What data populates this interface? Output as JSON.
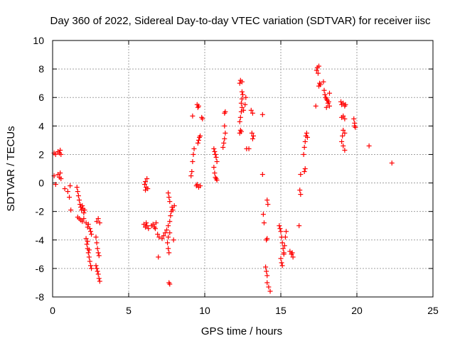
{
  "chart_data": {
    "type": "scatter",
    "title": "Day 360 of 2022, Sidereal Day-to-day VTEC variation (SDTVAR) for receiver iisc",
    "xlabel": "GPS time / hours",
    "ylabel": "SDTVAR / TECUs",
    "xlim": [
      0,
      25
    ],
    "ylim": [
      -8,
      10
    ],
    "xticks": [
      "0",
      "5",
      "10",
      "15",
      "20",
      "25"
    ],
    "yticks": [
      "-8",
      "-6",
      "-4",
      "-2",
      "0",
      "2",
      "4",
      "6",
      "8",
      "10"
    ],
    "grid": true,
    "marker": "+",
    "color": "#ff0000",
    "series": [
      {
        "name": "SDTVAR",
        "points": [
          [
            0.1,
            2.1
          ],
          [
            0.2,
            2.0
          ],
          [
            0.35,
            2.2
          ],
          [
            0.45,
            2.1
          ],
          [
            0.5,
            2.3
          ],
          [
            0.55,
            2.0
          ],
          [
            0.1,
            0.5
          ],
          [
            0.2,
            -0.1
          ],
          [
            0.35,
            0.6
          ],
          [
            0.45,
            0.4
          ],
          [
            0.5,
            0.7
          ],
          [
            0.55,
            0.3
          ],
          [
            0.8,
            -0.4
          ],
          [
            1.0,
            -0.6
          ],
          [
            1.1,
            -1.0
          ],
          [
            1.2,
            -1.9
          ],
          [
            1.15,
            -0.2
          ],
          [
            1.6,
            -0.3
          ],
          [
            1.65,
            -0.6
          ],
          [
            1.7,
            -0.9
          ],
          [
            1.75,
            -1.2
          ],
          [
            1.8,
            -1.5
          ],
          [
            1.85,
            -1.7
          ],
          [
            1.9,
            -1.9
          ],
          [
            1.95,
            -1.6
          ],
          [
            2.0,
            -1.8
          ],
          [
            2.05,
            -2.1
          ],
          [
            2.1,
            -1.9
          ],
          [
            1.65,
            -2.4
          ],
          [
            1.75,
            -2.5
          ],
          [
            1.85,
            -2.6
          ],
          [
            1.95,
            -2.7
          ],
          [
            2.05,
            -2.5
          ],
          [
            2.2,
            -2.8
          ],
          [
            2.3,
            -3.1
          ],
          [
            2.35,
            -2.9
          ],
          [
            2.45,
            -3.2
          ],
          [
            2.5,
            -3.4
          ],
          [
            2.55,
            -3.6
          ],
          [
            2.2,
            -3.9
          ],
          [
            2.25,
            -4.3
          ],
          [
            2.3,
            -4.6
          ],
          [
            2.35,
            -4.9
          ],
          [
            2.4,
            -5.2
          ],
          [
            2.45,
            -5.5
          ],
          [
            2.5,
            -5.8
          ],
          [
            2.55,
            -6.0
          ],
          [
            2.3,
            -4.1
          ],
          [
            2.4,
            -4.7
          ],
          [
            2.85,
            -3.8
          ],
          [
            2.9,
            -4.2
          ],
          [
            2.95,
            -4.6
          ],
          [
            3.0,
            -4.9
          ],
          [
            3.05,
            -5.1
          ],
          [
            2.85,
            -5.8
          ],
          [
            2.9,
            -6.0
          ],
          [
            2.95,
            -6.2
          ],
          [
            3.0,
            -6.4
          ],
          [
            3.05,
            -6.7
          ],
          [
            3.1,
            -6.9
          ],
          [
            2.9,
            -2.7
          ],
          [
            3.0,
            -2.5
          ],
          [
            3.1,
            -2.8
          ],
          [
            6.05,
            -0.1
          ],
          [
            6.1,
            0.1
          ],
          [
            6.15,
            -0.3
          ],
          [
            6.2,
            0.3
          ],
          [
            6.25,
            -0.4
          ],
          [
            6.1,
            -0.5
          ],
          [
            6.0,
            -2.9
          ],
          [
            6.1,
            -3.1
          ],
          [
            6.2,
            -3.0
          ],
          [
            6.3,
            -3.2
          ],
          [
            6.15,
            -2.8
          ],
          [
            6.5,
            -3.0
          ],
          [
            6.6,
            -2.9
          ],
          [
            6.7,
            -3.1
          ],
          [
            6.8,
            -2.8
          ],
          [
            6.75,
            -3.2
          ],
          [
            6.9,
            -3.6
          ],
          [
            7.0,
            -3.8
          ],
          [
            6.95,
            -5.2
          ],
          [
            7.2,
            -3.9
          ],
          [
            7.3,
            -3.7
          ],
          [
            7.4,
            -3.5
          ],
          [
            7.5,
            -3.3
          ],
          [
            7.6,
            -3.0
          ],
          [
            7.7,
            -2.7
          ],
          [
            7.55,
            -4.2
          ],
          [
            7.6,
            -4.6
          ],
          [
            7.65,
            -4.9
          ],
          [
            7.6,
            -3.8
          ],
          [
            7.7,
            -3.5
          ],
          [
            7.75,
            -2.3
          ],
          [
            7.8,
            -2.0
          ],
          [
            7.85,
            -1.7
          ],
          [
            7.9,
            -1.9
          ],
          [
            8.0,
            -1.6
          ],
          [
            7.95,
            -4.0
          ],
          [
            7.6,
            -0.7
          ],
          [
            7.65,
            -1.0
          ],
          [
            7.7,
            -1.3
          ],
          [
            7.65,
            -7.0
          ],
          [
            7.7,
            -7.1
          ],
          [
            9.1,
            0.5
          ],
          [
            9.15,
            0.8
          ],
          [
            9.2,
            1.5
          ],
          [
            9.25,
            2.0
          ],
          [
            9.3,
            2.4
          ],
          [
            9.2,
            4.7
          ],
          [
            9.5,
            5.5
          ],
          [
            9.55,
            5.3
          ],
          [
            9.6,
            5.4
          ],
          [
            9.55,
            2.8
          ],
          [
            9.6,
            3.0
          ],
          [
            9.65,
            3.2
          ],
          [
            9.7,
            3.3
          ],
          [
            9.8,
            4.6
          ],
          [
            9.85,
            4.5
          ],
          [
            9.45,
            -0.2
          ],
          [
            9.5,
            -0.1
          ],
          [
            9.6,
            -0.3
          ],
          [
            9.7,
            -0.2
          ],
          [
            10.6,
            2.4
          ],
          [
            10.65,
            2.2
          ],
          [
            10.7,
            2.0
          ],
          [
            10.75,
            1.8
          ],
          [
            10.8,
            1.5
          ],
          [
            10.6,
            1.1
          ],
          [
            10.65,
            0.7
          ],
          [
            10.7,
            0.4
          ],
          [
            10.75,
            0.3
          ],
          [
            10.8,
            0.2
          ],
          [
            11.2,
            2.5
          ],
          [
            11.25,
            2.8
          ],
          [
            11.3,
            3.1
          ],
          [
            11.35,
            3.5
          ],
          [
            11.3,
            4.0
          ],
          [
            11.35,
            5.0
          ],
          [
            11.3,
            4.9
          ],
          [
            12.3,
            3.5
          ],
          [
            12.35,
            3.7
          ],
          [
            12.4,
            3.6
          ],
          [
            12.3,
            4.3
          ],
          [
            12.35,
            4.6
          ],
          [
            12.4,
            5.0
          ],
          [
            12.45,
            5.3
          ],
          [
            12.4,
            5.6
          ],
          [
            12.45,
            5.9
          ],
          [
            12.5,
            6.2
          ],
          [
            12.45,
            6.4
          ],
          [
            12.3,
            7.0
          ],
          [
            12.35,
            7.2
          ],
          [
            12.45,
            7.1
          ],
          [
            12.55,
            5.1
          ],
          [
            12.65,
            5.5
          ],
          [
            12.7,
            6.0
          ],
          [
            12.75,
            2.4
          ],
          [
            12.9,
            2.4
          ],
          [
            13.05,
            5.1
          ],
          [
            13.15,
            4.9
          ],
          [
            13.1,
            3.5
          ],
          [
            13.15,
            3.1
          ],
          [
            13.2,
            3.3
          ],
          [
            13.8,
            4.8
          ],
          [
            13.8,
            0.6
          ],
          [
            13.85,
            -2.2
          ],
          [
            13.9,
            -2.8
          ],
          [
            14.1,
            -1.2
          ],
          [
            14.15,
            -1.5
          ],
          [
            14.05,
            -4.0
          ],
          [
            14.1,
            -3.9
          ],
          [
            14.0,
            -5.9
          ],
          [
            14.05,
            -6.2
          ],
          [
            14.1,
            -6.5
          ],
          [
            14.1,
            -7.0
          ],
          [
            14.2,
            -7.3
          ],
          [
            14.3,
            -7.6
          ],
          [
            14.9,
            -3.0
          ],
          [
            14.95,
            -3.2
          ],
          [
            15.0,
            -3.4
          ],
          [
            15.05,
            -3.8
          ],
          [
            15.1,
            -4.2
          ],
          [
            15.15,
            -4.6
          ],
          [
            15.2,
            -5.0
          ],
          [
            15.25,
            -4.4
          ],
          [
            15.3,
            -3.8
          ],
          [
            15.35,
            -3.4
          ],
          [
            15.0,
            -5.3
          ],
          [
            15.05,
            -5.6
          ],
          [
            15.1,
            -5.8
          ],
          [
            15.2,
            -4.9
          ],
          [
            15.6,
            -4.8
          ],
          [
            15.7,
            -5.0
          ],
          [
            15.8,
            -5.2
          ],
          [
            15.75,
            -4.9
          ],
          [
            16.2,
            -3.0
          ],
          [
            16.25,
            -0.5
          ],
          [
            16.3,
            -0.8
          ],
          [
            16.3,
            0.6
          ],
          [
            16.6,
            1.0
          ],
          [
            16.55,
            0.8
          ],
          [
            16.5,
            2.0
          ],
          [
            16.55,
            2.5
          ],
          [
            16.6,
            2.9
          ],
          [
            16.65,
            3.3
          ],
          [
            16.7,
            3.5
          ],
          [
            16.75,
            3.2
          ],
          [
            17.3,
            5.4
          ],
          [
            17.35,
            7.9
          ],
          [
            17.4,
            8.1
          ],
          [
            17.5,
            8.2
          ],
          [
            17.45,
            7.7
          ],
          [
            17.5,
            6.8
          ],
          [
            17.55,
            7.0
          ],
          [
            17.6,
            6.9
          ],
          [
            17.8,
            7.1
          ],
          [
            17.85,
            6.5
          ],
          [
            17.9,
            6.2
          ],
          [
            18.0,
            5.9
          ],
          [
            18.1,
            5.6
          ],
          [
            18.2,
            5.4
          ],
          [
            17.95,
            6.0
          ],
          [
            18.05,
            5.8
          ],
          [
            18.15,
            5.7
          ],
          [
            18.2,
            6.3
          ],
          [
            18.0,
            5.3
          ],
          [
            18.95,
            5.7
          ],
          [
            19.0,
            5.5
          ],
          [
            19.1,
            5.6
          ],
          [
            19.2,
            5.4
          ],
          [
            19.25,
            5.5
          ],
          [
            19.0,
            4.6
          ],
          [
            19.1,
            4.7
          ],
          [
            19.2,
            4.5
          ],
          [
            19.1,
            3.7
          ],
          [
            19.2,
            3.5
          ],
          [
            19.05,
            3.3
          ],
          [
            19.0,
            2.9
          ],
          [
            19.1,
            2.6
          ],
          [
            19.2,
            2.3
          ],
          [
            19.8,
            4.5
          ],
          [
            19.85,
            4.2
          ],
          [
            19.9,
            3.9
          ],
          [
            19.85,
            4.0
          ],
          [
            20.8,
            2.6
          ],
          [
            22.3,
            1.4
          ]
        ]
      }
    ]
  }
}
